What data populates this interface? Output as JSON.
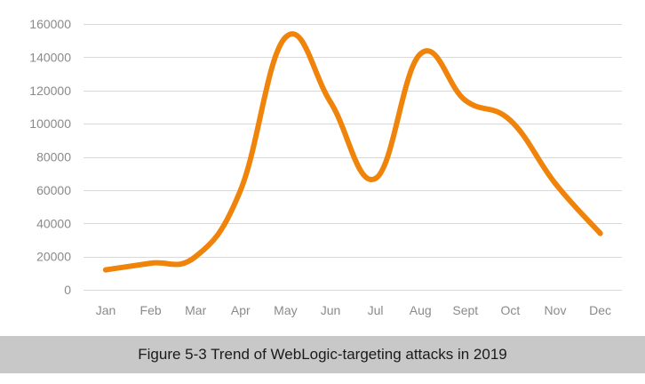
{
  "chart_data": {
    "type": "line",
    "categories": [
      "Jan",
      "Feb",
      "Mar",
      "Apr",
      "May",
      "Jun",
      "Jul",
      "Aug",
      "Sept",
      "Oct",
      "Nov",
      "Dec"
    ],
    "values": [
      12000,
      16000,
      20000,
      60000,
      152000,
      113000,
      67000,
      142000,
      114000,
      102000,
      64000,
      34000
    ],
    "ylim": [
      0,
      160000
    ],
    "yticks": [
      0,
      20000,
      40000,
      60000,
      80000,
      100000,
      120000,
      140000,
      160000
    ],
    "grid": true,
    "line_color": "#f0830a",
    "grid_color": "#d9d9d9"
  },
  "caption": "Figure 5-3 Trend of WebLogic-targeting attacks in 2019"
}
